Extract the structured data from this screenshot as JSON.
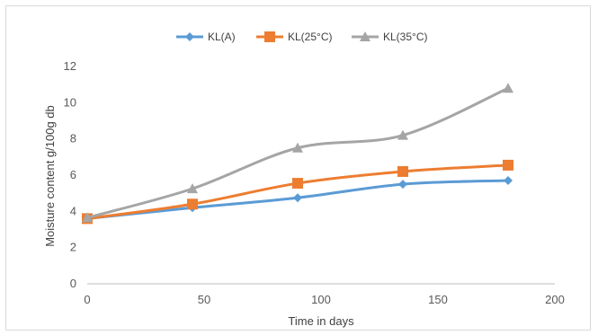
{
  "chart_data": {
    "type": "line",
    "xlabel": "Time in days",
    "ylabel": "Moisture content g/100g db",
    "xlim": [
      0,
      200
    ],
    "ylim": [
      0,
      12
    ],
    "xticks": [
      0,
      50,
      100,
      150,
      200
    ],
    "yticks": [
      0,
      2,
      4,
      6,
      8,
      10,
      12
    ],
    "grid": false,
    "legend_position": "top",
    "smooth": true,
    "series": [
      {
        "name": "KL(A)",
        "color": "#5b9bd5",
        "marker": "diamond",
        "x": [
          0,
          45,
          90,
          135,
          180
        ],
        "y": [
          3.6,
          4.2,
          4.75,
          5.5,
          5.7
        ]
      },
      {
        "name": "KL(25°C)",
        "color": "#ed7d31",
        "marker": "square",
        "x": [
          0,
          45,
          90,
          135,
          180
        ],
        "y": [
          3.6,
          4.4,
          5.55,
          6.2,
          6.55
        ]
      },
      {
        "name": "KL(35°C)",
        "color": "#a5a5a5",
        "marker": "triangle",
        "x": [
          0,
          45,
          90,
          135,
          180
        ],
        "y": [
          3.65,
          5.25,
          7.5,
          8.2,
          10.8
        ]
      }
    ]
  }
}
